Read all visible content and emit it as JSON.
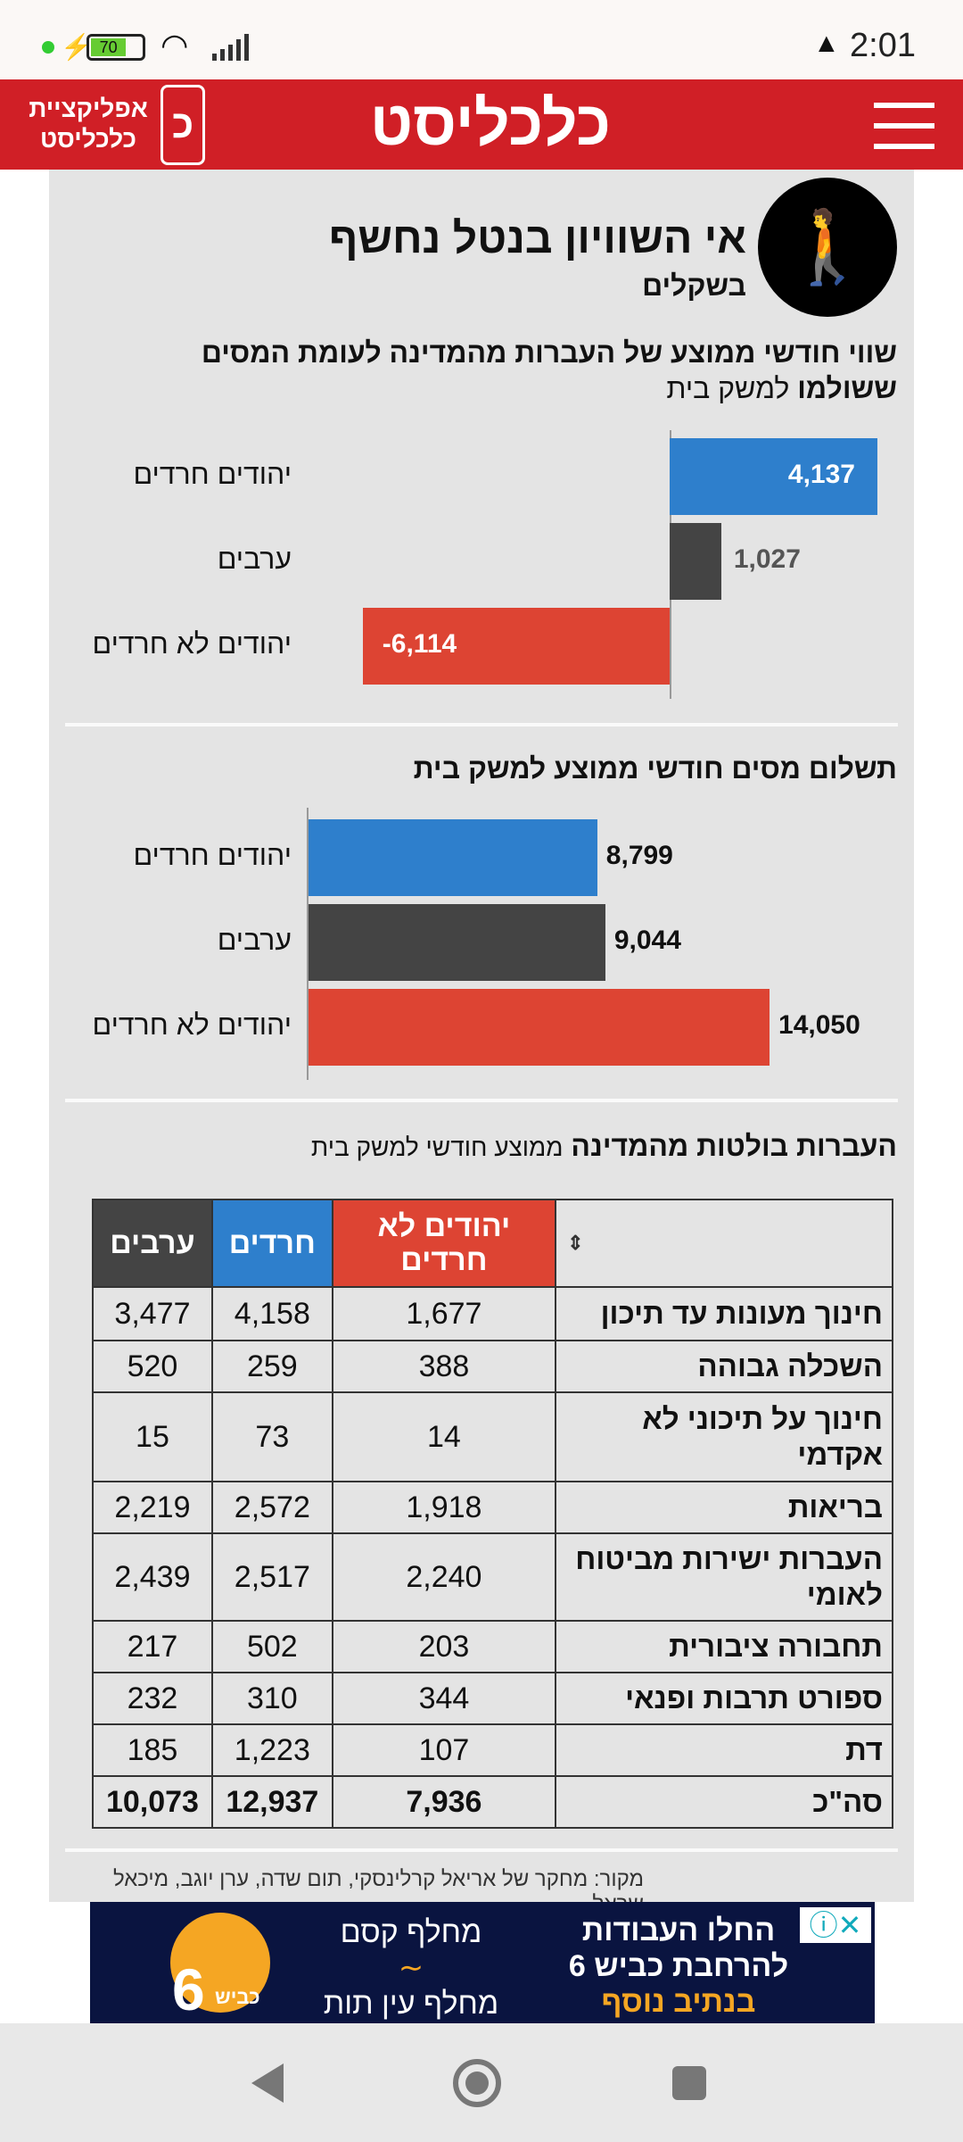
{
  "status_bar": {
    "time": "2:01",
    "battery": "70"
  },
  "header": {
    "logo": "כלכליסט",
    "app_promo_line1": "אפליקציית",
    "app_promo_line2": "כלכליסט",
    "app_icon_letter": "כ"
  },
  "infographic": {
    "title": "אי השוויון בנטל נחשף",
    "subtitle": "בשקלים",
    "chart_data": [
      {
        "type": "bar",
        "orientation": "horizontal",
        "title_bold": "שווי חודשי ממוצע של העברות מהמדינה לעומת המסים ששולמו",
        "title_regular": "למשק בית",
        "categories": [
          "יהודים חרדים",
          "ערבים",
          "יהודים לא חרדים"
        ],
        "values": [
          4137,
          1027,
          -6114
        ],
        "value_labels": [
          "4,137",
          "1,027",
          "-6,114"
        ],
        "colors": [
          "#2e7fcc",
          "#444444",
          "#dd4433"
        ]
      },
      {
        "type": "bar",
        "orientation": "horizontal",
        "title": "תשלום מסים חודשי ממוצע למשק בית",
        "categories": [
          "יהודים חרדים",
          "ערבים",
          "יהודים לא חרדים"
        ],
        "values": [
          8799,
          9044,
          14050
        ],
        "value_labels": [
          "8,799",
          "9,044",
          "14,050"
        ],
        "colors": [
          "#2e7fcc",
          "#444444",
          "#dd4433"
        ]
      }
    ],
    "table": {
      "title_bold": "העברות בולטות מהמדינה",
      "title_regular": "ממוצע חודשי למשק בית",
      "sort_icon": "sort-icon",
      "columns": [
        "יהודים לא חרדים",
        "חרדים",
        "ערבים"
      ],
      "rows": [
        {
          "label": "חינוך מעונות עד תיכון",
          "values": [
            "1,677",
            "4,158",
            "3,477"
          ]
        },
        {
          "label": "השכלה גבוהה",
          "values": [
            "388",
            "259",
            "520"
          ]
        },
        {
          "label": "חינוך על תיכוני לא אקדמי",
          "values": [
            "14",
            "73",
            "15"
          ]
        },
        {
          "label": "בריאות",
          "values": [
            "1,918",
            "2,572",
            "2,219"
          ]
        },
        {
          "label": "העברות ישירות מביטוח לאומי",
          "values": [
            "2,240",
            "2,517",
            "2,439"
          ]
        },
        {
          "label": "תחבורה ציבורית",
          "values": [
            "203",
            "502",
            "217"
          ]
        },
        {
          "label": "ספורט תרבות ופנאי",
          "values": [
            "344",
            "310",
            "232"
          ]
        },
        {
          "label": "דת",
          "values": [
            "107",
            "1,223",
            "185"
          ]
        },
        {
          "label": "סה\"כ",
          "values": [
            "7,936",
            "12,937",
            "10,073"
          ]
        }
      ]
    },
    "source": "מקור: מחקר של אריאל קרלינסקי, תום שדה, ערן יוגב, מיכאל שראל"
  },
  "ad": {
    "headline1": "החלו העבודות",
    "headline2": "להרחבת כביש 6",
    "headline3": "בנתיב נוסף",
    "interchange1": "מחלף קסם",
    "interchange2": "מחלף עין תות",
    "brand": "כביש",
    "brand_number": "6"
  }
}
